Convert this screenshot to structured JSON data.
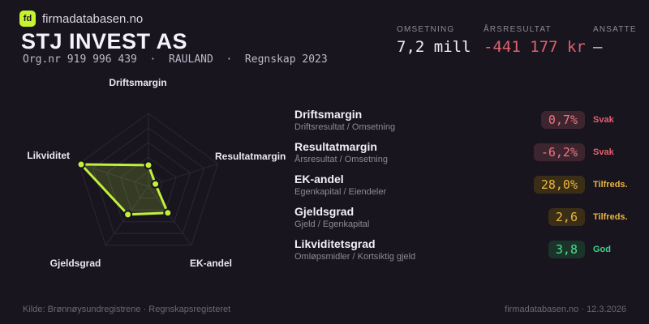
{
  "header": {
    "logo_text": "fd",
    "brand": "firmadatabasen.no",
    "company": "STJ INVEST AS",
    "meta": "Org.nr 919 996 439  ·  RAULAND  ·  Regnskap 2023",
    "stats": [
      {
        "label": "OMSETNING",
        "value": "7,2 mill"
      },
      {
        "label": "ÅRSRESULTAT",
        "value": "-441 177 kr"
      },
      {
        "label": "ANSATTE",
        "value": "–"
      }
    ]
  },
  "chart_data": {
    "type": "radar",
    "title": "",
    "categories": [
      "Driftsmargin",
      "Resultatmargin",
      "EK-andel",
      "Gjeldsgrad",
      "Likviditet"
    ],
    "values_normalized": [
      0.29,
      0.1,
      0.45,
      0.48,
      0.97
    ],
    "value_labels": [
      "0,7%",
      "-6,2%",
      "28,0%",
      "2,6",
      "3,8"
    ],
    "range": [
      0,
      1
    ],
    "rings": 5,
    "grid": "on",
    "legend": "none",
    "line_color": "#c3ef3c",
    "fill_color": "rgba(195,239,60,0.18)",
    "grid_color": "#2b2836"
  },
  "metrics": [
    {
      "name": "Driftsmargin",
      "formula": "Driftsresultat / Omsetning",
      "value": "0,7%",
      "status": "Svak"
    },
    {
      "name": "Resultatmargin",
      "formula": "Årsresultat / Omsetning",
      "value": "-6,2%",
      "status": "Svak"
    },
    {
      "name": "EK-andel",
      "formula": "Egenkapital / Eiendeler",
      "value": "28,0%",
      "status": "Tilfreds."
    },
    {
      "name": "Gjeldsgrad",
      "formula": "Gjeld / Egenkapital",
      "value": "2,6",
      "status": "Tilfreds."
    },
    {
      "name": "Likviditetsgrad",
      "formula": "Omløpsmidler / Kortsiktig gjeld",
      "value": "3,8",
      "status": "God"
    }
  ],
  "colors": {
    "background": "#18151f",
    "accent_green": "#c6f22e",
    "negative_red": "#e0616b",
    "warn_amber": "#eab33c",
    "good_green": "#3fd387"
  },
  "footer": {
    "source": "Kilde: Brønnøysundregistrene · Regnskapsregisteret",
    "site": "firmadatabasen.no · 12.3.2026"
  }
}
